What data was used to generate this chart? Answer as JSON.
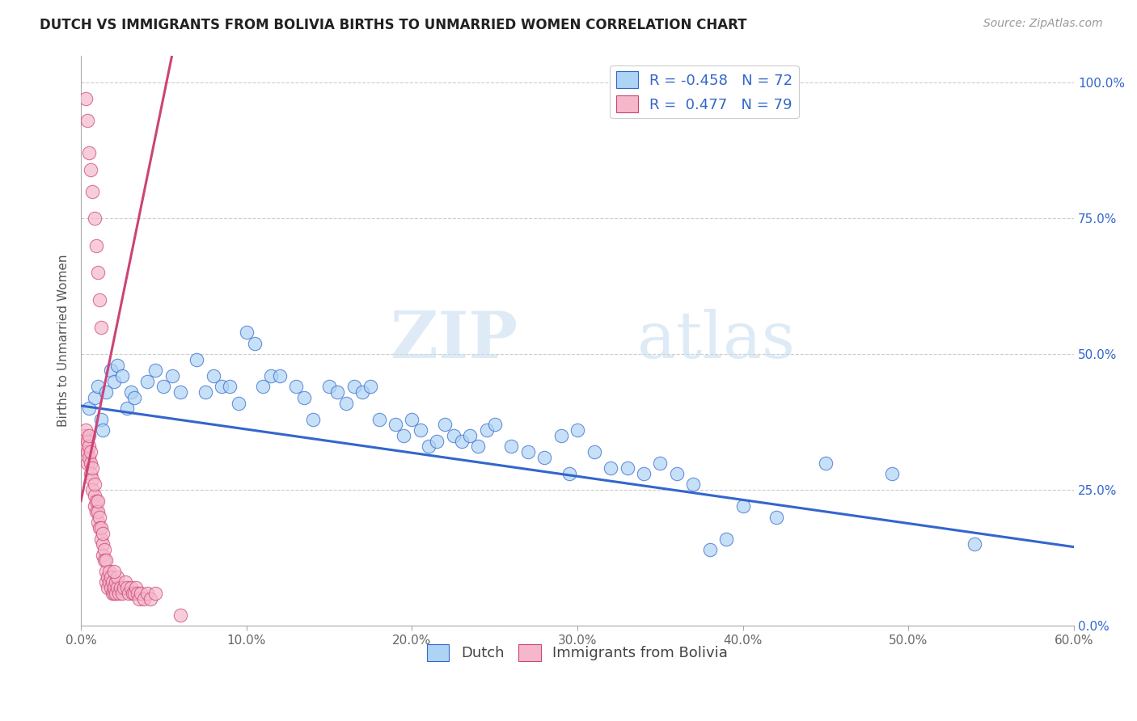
{
  "title": "DUTCH VS IMMIGRANTS FROM BOLIVIA BIRTHS TO UNMARRIED WOMEN CORRELATION CHART",
  "source": "Source: ZipAtlas.com",
  "ylabel": "Births to Unmarried Women",
  "xmin": 0.0,
  "xmax": 0.6,
  "ymin": 0.0,
  "ymax": 1.05,
  "xticks": [
    0.0,
    0.1,
    0.2,
    0.3,
    0.4,
    0.5,
    0.6
  ],
  "xtick_labels": [
    "0.0%",
    "10.0%",
    "20.0%",
    "30.0%",
    "40.0%",
    "50.0%",
    "60.0%"
  ],
  "yticks_right": [
    0.0,
    0.25,
    0.5,
    0.75,
    1.0
  ],
  "ytick_labels_right": [
    "0.0%",
    "25.0%",
    "50.0%",
    "75.0%",
    "100.0%"
  ],
  "legend_r_dutch": "-0.458",
  "legend_n_dutch": "72",
  "legend_r_bolivia": "0.477",
  "legend_n_bolivia": "79",
  "dutch_color": "#aed4f5",
  "bolivia_color": "#f5b8ca",
  "dutch_line_color": "#3366cc",
  "bolivia_line_color": "#cc4477",
  "watermark_zip": "ZIP",
  "watermark_atlas": "atlas",
  "dutch_x": [
    0.005,
    0.008,
    0.01,
    0.012,
    0.013,
    0.015,
    0.018,
    0.02,
    0.022,
    0.025,
    0.028,
    0.03,
    0.032,
    0.04,
    0.045,
    0.05,
    0.055,
    0.06,
    0.07,
    0.075,
    0.08,
    0.085,
    0.09,
    0.095,
    0.1,
    0.105,
    0.11,
    0.115,
    0.12,
    0.13,
    0.135,
    0.14,
    0.15,
    0.155,
    0.16,
    0.165,
    0.17,
    0.175,
    0.18,
    0.19,
    0.195,
    0.2,
    0.205,
    0.21,
    0.215,
    0.22,
    0.225,
    0.23,
    0.235,
    0.24,
    0.245,
    0.25,
    0.26,
    0.27,
    0.28,
    0.29,
    0.295,
    0.3,
    0.31,
    0.32,
    0.33,
    0.34,
    0.35,
    0.36,
    0.37,
    0.38,
    0.39,
    0.4,
    0.42,
    0.45,
    0.49,
    0.54
  ],
  "dutch_y": [
    0.4,
    0.42,
    0.44,
    0.38,
    0.36,
    0.43,
    0.47,
    0.45,
    0.48,
    0.46,
    0.4,
    0.43,
    0.42,
    0.45,
    0.47,
    0.44,
    0.46,
    0.43,
    0.49,
    0.43,
    0.46,
    0.44,
    0.44,
    0.41,
    0.54,
    0.52,
    0.44,
    0.46,
    0.46,
    0.44,
    0.42,
    0.38,
    0.44,
    0.43,
    0.41,
    0.44,
    0.43,
    0.44,
    0.38,
    0.37,
    0.35,
    0.38,
    0.36,
    0.33,
    0.34,
    0.37,
    0.35,
    0.34,
    0.35,
    0.33,
    0.36,
    0.37,
    0.33,
    0.32,
    0.31,
    0.35,
    0.28,
    0.36,
    0.32,
    0.29,
    0.29,
    0.28,
    0.3,
    0.28,
    0.26,
    0.14,
    0.16,
    0.22,
    0.2,
    0.3,
    0.28,
    0.15
  ],
  "bolivia_x": [
    0.002,
    0.003,
    0.003,
    0.004,
    0.004,
    0.004,
    0.005,
    0.005,
    0.005,
    0.006,
    0.006,
    0.006,
    0.007,
    0.007,
    0.007,
    0.008,
    0.008,
    0.008,
    0.009,
    0.009,
    0.01,
    0.01,
    0.01,
    0.011,
    0.011,
    0.012,
    0.012,
    0.013,
    0.013,
    0.013,
    0.014,
    0.014,
    0.015,
    0.015,
    0.015,
    0.016,
    0.016,
    0.017,
    0.017,
    0.018,
    0.018,
    0.019,
    0.019,
    0.02,
    0.02,
    0.021,
    0.021,
    0.022,
    0.022,
    0.023,
    0.024,
    0.025,
    0.026,
    0.027,
    0.028,
    0.029,
    0.03,
    0.031,
    0.032,
    0.033,
    0.034,
    0.035,
    0.036,
    0.038,
    0.04,
    0.042,
    0.045,
    0.02,
    0.003,
    0.004,
    0.005,
    0.006,
    0.007,
    0.008,
    0.009,
    0.01,
    0.011,
    0.012,
    0.06
  ],
  "bolivia_y": [
    0.35,
    0.33,
    0.36,
    0.34,
    0.32,
    0.3,
    0.31,
    0.33,
    0.35,
    0.3,
    0.32,
    0.28,
    0.27,
    0.29,
    0.25,
    0.24,
    0.26,
    0.22,
    0.23,
    0.21,
    0.19,
    0.21,
    0.23,
    0.2,
    0.18,
    0.16,
    0.18,
    0.15,
    0.17,
    0.13,
    0.14,
    0.12,
    0.1,
    0.12,
    0.08,
    0.09,
    0.07,
    0.08,
    0.1,
    0.07,
    0.09,
    0.06,
    0.08,
    0.06,
    0.07,
    0.08,
    0.06,
    0.07,
    0.09,
    0.06,
    0.07,
    0.06,
    0.07,
    0.08,
    0.07,
    0.06,
    0.07,
    0.06,
    0.06,
    0.07,
    0.06,
    0.05,
    0.06,
    0.05,
    0.06,
    0.05,
    0.06,
    0.1,
    0.97,
    0.93,
    0.87,
    0.84,
    0.8,
    0.75,
    0.7,
    0.65,
    0.6,
    0.55,
    0.02
  ],
  "bolivia_trend_x": [
    0.0,
    0.055
  ],
  "bolivia_trend_y": [
    0.23,
    1.05
  ],
  "dutch_trend_x": [
    0.0,
    0.6
  ],
  "dutch_trend_y": [
    0.405,
    0.145
  ]
}
